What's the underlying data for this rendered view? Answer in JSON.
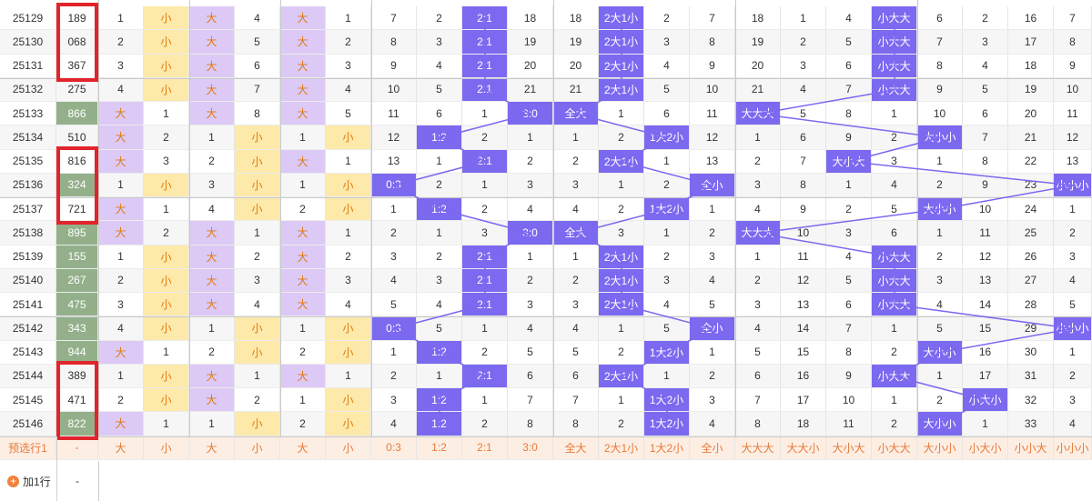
{
  "rows": [
    [
      "25129",
      "189",
      "1",
      "小",
      "大",
      "4",
      "大",
      "1",
      "7",
      "2",
      "2:1",
      "18",
      "18",
      "2大1小",
      "2",
      "7",
      "18",
      "1",
      "4",
      "小大大",
      "6",
      "2",
      "16",
      "7"
    ],
    [
      "25130",
      "068",
      "2",
      "小",
      "大",
      "5",
      "大",
      "2",
      "8",
      "3",
      "2:1",
      "19",
      "19",
      "2大1小",
      "3",
      "8",
      "19",
      "2",
      "5",
      "小大大",
      "7",
      "3",
      "17",
      "8"
    ],
    [
      "25131",
      "367",
      "3",
      "小",
      "大",
      "6",
      "大",
      "3",
      "9",
      "4",
      "2:1",
      "20",
      "20",
      "2大1小",
      "4",
      "9",
      "20",
      "3",
      "6",
      "小大大",
      "8",
      "4",
      "18",
      "9"
    ],
    [
      "25132",
      "275",
      "4",
      "小",
      "大",
      "7",
      "大",
      "4",
      "10",
      "5",
      "2:1",
      "21",
      "21",
      "2大1小",
      "5",
      "10",
      "21",
      "4",
      "7",
      "小大大",
      "9",
      "5",
      "19",
      "10"
    ],
    [
      "25133",
      "866",
      "大",
      "1",
      "大",
      "8",
      "大",
      "5",
      "11",
      "6",
      "1",
      "3:0",
      "全大",
      "1",
      "6",
      "11",
      "大大大",
      "5",
      "8",
      "1",
      "10",
      "6",
      "20",
      "11"
    ],
    [
      "25134",
      "510",
      "大",
      "2",
      "1",
      "小",
      "1",
      "小",
      "12",
      "1:2",
      "2",
      "1",
      "1",
      "2",
      "1大2小",
      "12",
      "1",
      "6",
      "9",
      "2",
      "大小小",
      "7",
      "21",
      "12"
    ],
    [
      "25135",
      "816",
      "大",
      "3",
      "2",
      "小",
      "大",
      "1",
      "13",
      "1",
      "2:1",
      "2",
      "2",
      "2大1小",
      "1",
      "13",
      "2",
      "7",
      "大小大",
      "3",
      "1",
      "8",
      "22",
      "13"
    ],
    [
      "25136",
      "324",
      "1",
      "小",
      "3",
      "小",
      "1",
      "小",
      "0:3",
      "2",
      "1",
      "3",
      "3",
      "1",
      "2",
      "全小",
      "3",
      "8",
      "1",
      "4",
      "2",
      "9",
      "23",
      "小小小"
    ],
    [
      "25137",
      "721",
      "大",
      "1",
      "4",
      "小",
      "2",
      "小",
      "1",
      "1:2",
      "2",
      "4",
      "4",
      "2",
      "1大2小",
      "1",
      "4",
      "9",
      "2",
      "5",
      "大小小",
      "10",
      "24",
      "1"
    ],
    [
      "25138",
      "895",
      "大",
      "2",
      "大",
      "1",
      "大",
      "1",
      "2",
      "1",
      "3",
      "3:0",
      "全大",
      "3",
      "1",
      "2",
      "大大大",
      "10",
      "3",
      "6",
      "1",
      "11",
      "25",
      "2"
    ],
    [
      "25139",
      "155",
      "1",
      "小",
      "大",
      "2",
      "大",
      "2",
      "3",
      "2",
      "2:1",
      "1",
      "1",
      "2大1小",
      "2",
      "3",
      "1",
      "11",
      "4",
      "小大大",
      "2",
      "12",
      "26",
      "3"
    ],
    [
      "25140",
      "267",
      "2",
      "小",
      "大",
      "3",
      "大",
      "3",
      "4",
      "3",
      "2:1",
      "2",
      "2",
      "2大1小",
      "3",
      "4",
      "2",
      "12",
      "5",
      "小大大",
      "3",
      "13",
      "27",
      "4"
    ],
    [
      "25141",
      "475",
      "3",
      "小",
      "大",
      "4",
      "大",
      "4",
      "5",
      "4",
      "2:1",
      "3",
      "3",
      "2大1小",
      "4",
      "5",
      "3",
      "13",
      "6",
      "小大大",
      "4",
      "14",
      "28",
      "5"
    ],
    [
      "25142",
      "343",
      "4",
      "小",
      "1",
      "小",
      "1",
      "小",
      "0:3",
      "5",
      "1",
      "4",
      "4",
      "1",
      "5",
      "全小",
      "4",
      "14",
      "7",
      "1",
      "5",
      "15",
      "29",
      "小小小"
    ],
    [
      "25143",
      "944",
      "大",
      "1",
      "2",
      "小",
      "2",
      "小",
      "1",
      "1:2",
      "2",
      "5",
      "5",
      "2",
      "1大2小",
      "1",
      "5",
      "15",
      "8",
      "2",
      "大小小",
      "16",
      "30",
      "1"
    ],
    [
      "25144",
      "389",
      "1",
      "小",
      "大",
      "1",
      "大",
      "1",
      "2",
      "1",
      "2:1",
      "6",
      "6",
      "2大1小",
      "1",
      "2",
      "6",
      "16",
      "9",
      "小大大",
      "1",
      "17",
      "31",
      "2"
    ],
    [
      "25145",
      "471",
      "2",
      "小",
      "大",
      "2",
      "1",
      "小",
      "3",
      "1:2",
      "1",
      "7",
      "7",
      "1",
      "1大2小",
      "3",
      "7",
      "17",
      "10",
      "1",
      "2",
      "小大小",
      "32",
      "3"
    ],
    [
      "25146",
      "822",
      "大",
      "1",
      "1",
      "小",
      "2",
      "小",
      "4",
      "1:2",
      "2",
      "8",
      "8",
      "2",
      "1大2小",
      "4",
      "8",
      "18",
      "11",
      "2",
      "大小小",
      "1",
      "33",
      "4"
    ]
  ],
  "preselect": {
    "label": "预选行1",
    "values": [
      "-",
      "大",
      "小",
      "大",
      "小",
      "大",
      "小",
      "0:3",
      "1:2",
      "2:1",
      "3:0",
      "全大",
      "2大1小",
      "1大2小",
      "全小",
      "大大大",
      "大大小",
      "大小大",
      "小大大",
      "大小小",
      "小大小",
      "小小大",
      "小小小"
    ]
  },
  "add_row": {
    "label": "加1行",
    "value": "-"
  },
  "highlight_icon": "plus-circle-icon",
  "colors": {
    "blue": "#7b69f0",
    "yellow": "#fde9a9",
    "purple": "#dcc9f5",
    "green": "#93b08a",
    "red": "#e1242b"
  }
}
